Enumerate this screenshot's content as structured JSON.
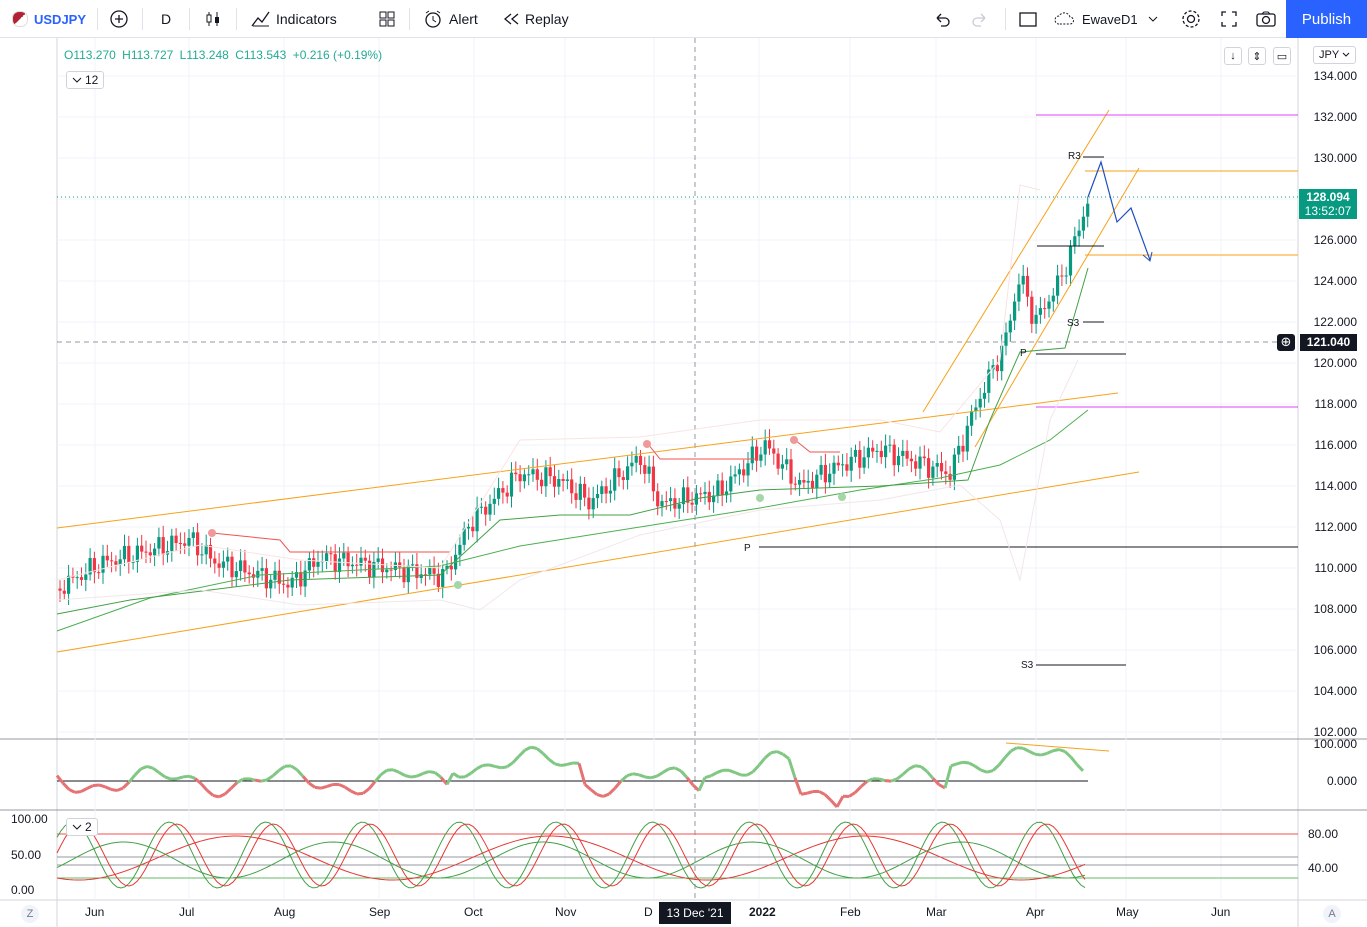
{
  "toolbar": {
    "symbol": "USDJPY",
    "interval": "D",
    "indicators_label": "Indicators",
    "alert_label": "Alert",
    "replay_label": "Replay",
    "layout_name": "EwaveD1",
    "publish_label": "Publish"
  },
  "legend": {
    "open": "O113.270",
    "high": "H113.727",
    "low": "L113.248",
    "close": "C113.543",
    "change": "+0.216 (+0.19%)",
    "indicator_count": "12",
    "pane3_count": "2"
  },
  "currency_button": "JPY",
  "price_axis": [
    "134.000",
    "132.000",
    "130.000",
    "128.000",
    "126.000",
    "124.000",
    "122.000",
    "120.000",
    "118.000",
    "116.000",
    "114.000",
    "112.000",
    "110.000",
    "108.000",
    "106.000",
    "104.000",
    "102.000"
  ],
  "last_price": {
    "price": "128.094",
    "countdown": "13:52:07"
  },
  "crosshair": {
    "price": "121.040",
    "time": "13 Dec '21"
  },
  "pane2_axis": [
    "100.000",
    "0.000"
  ],
  "pane3_axis_right": [
    "80.00",
    "40.00"
  ],
  "pane3_axis_left": [
    "100.00",
    "50.00",
    "0.00"
  ],
  "time_axis": [
    "Jun",
    "Jul",
    "Aug",
    "Sep",
    "Oct",
    "Nov",
    "D",
    "2022",
    "Feb",
    "Mar",
    "Apr",
    "May",
    "Jun"
  ],
  "pivot_labels": {
    "r3": "R3",
    "s3_upper": "S3",
    "p_upper": "P",
    "p_lower": "P",
    "s3_lower": "S3"
  },
  "corner_left": "Z",
  "corner_right": "A",
  "colors": {
    "up": "#26a69a",
    "down": "#ef5350",
    "channel": "#f7a21b",
    "pivot_magenta": "#e040fb",
    "publish": "#2962ff",
    "last_price_bg": "#089981",
    "forecast": "#2962ff"
  }
}
